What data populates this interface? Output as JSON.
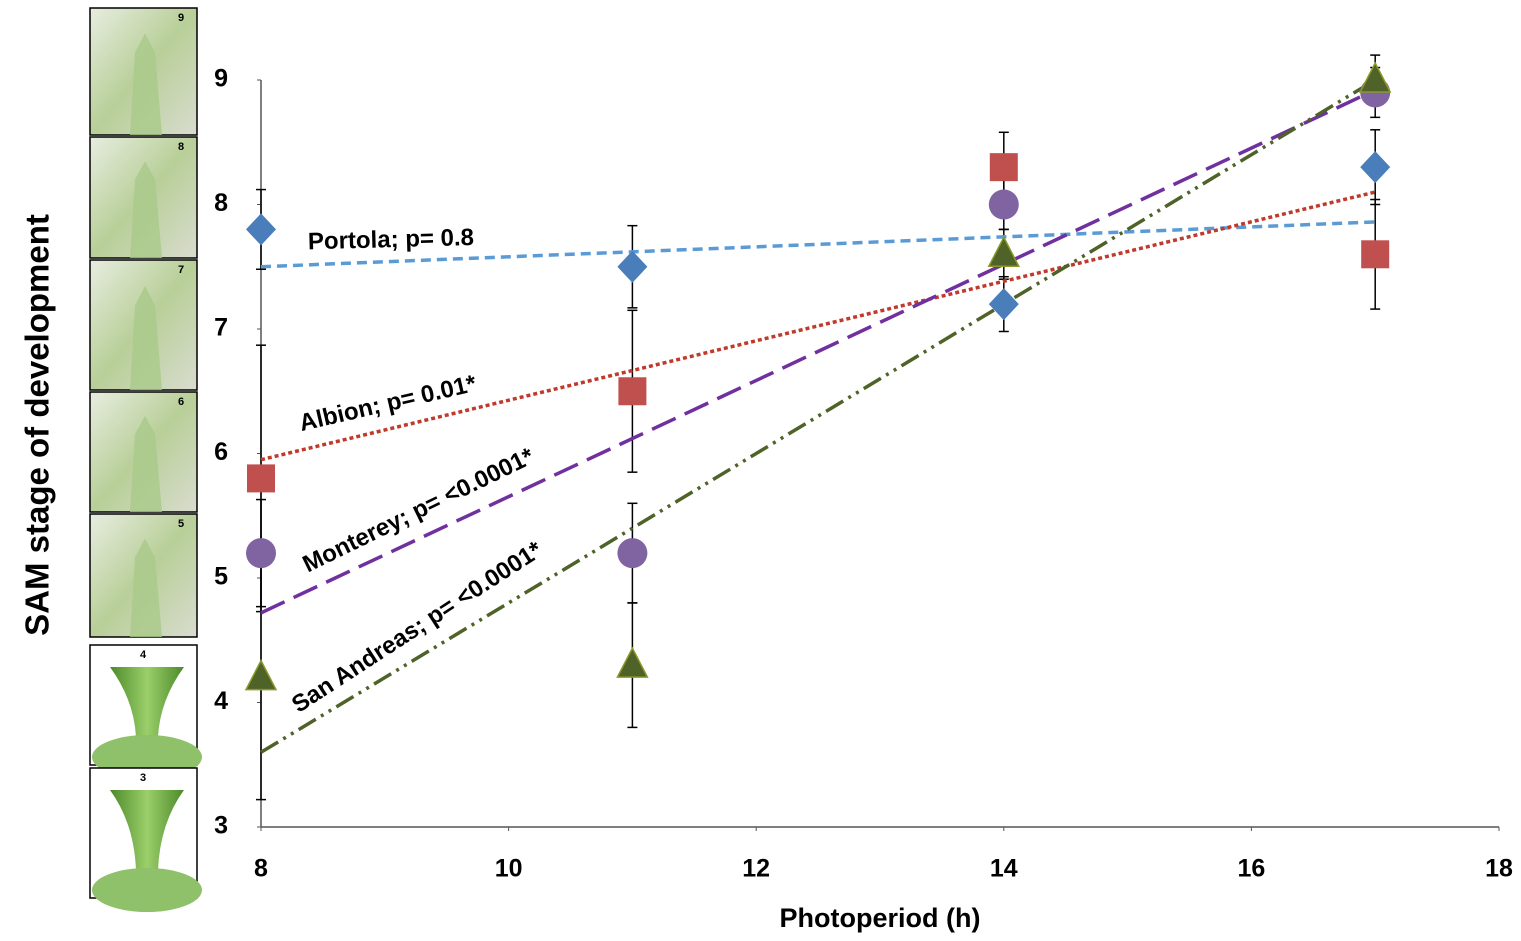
{
  "chart_data": {
    "type": "scatter",
    "x_label": "Photoperiod (h)",
    "y_label": "SAM stage of development",
    "xlim": [
      8,
      18
    ],
    "xticks": [
      8,
      10,
      12,
      14,
      16,
      18
    ],
    "ylim": [
      3,
      9
    ],
    "yticks": [
      3,
      4,
      5,
      6,
      7,
      8,
      9
    ],
    "x": [
      8,
      11,
      14,
      17
    ],
    "series": [
      {
        "name": "Portola; p=  0.8",
        "marker": "diamond",
        "color": "#4a7ebb",
        "line_color": "#5b9bd5",
        "dash": "10,6",
        "values": [
          7.8,
          7.5,
          7.2,
          8.3
        ],
        "errors": [
          0.32,
          0.33,
          0.22,
          0.3
        ],
        "trend_x": [
          8,
          17
        ],
        "trend": [
          7.5,
          7.86
        ]
      },
      {
        "name": "Albion; p=  0.01*",
        "marker": "square",
        "color": "#c0504d",
        "line_color": "#c0392b",
        "dash": "4,3",
        "values": [
          5.8,
          6.5,
          8.3,
          7.6
        ],
        "errors": [
          1.07,
          0.65,
          0.28,
          0.44
        ],
        "trend_x": [
          8,
          17
        ],
        "trend": [
          5.95,
          8.1
        ]
      },
      {
        "name": "Monterey; p=  <0.0001*",
        "marker": "circle",
        "color": "#8064a2",
        "line_color": "#7030a0",
        "dash": "26,10",
        "values": [
          5.2,
          5.2,
          8.0,
          8.9
        ],
        "errors": [
          0.43,
          0.4,
          0.2,
          0.2
        ],
        "trend_x": [
          8,
          17
        ],
        "trend": [
          4.72,
          8.92
        ]
      },
      {
        "name": "San Andreas; p=  <0.0001*",
        "marker": "triangle",
        "color": "#4f6228",
        "line_color": "#4f6228",
        "dash": "20,6,3,6,3,6",
        "values": [
          4.2,
          4.3,
          7.6,
          9.0
        ],
        "errors": [
          0.98,
          0.5,
          0.2,
          0.2
        ],
        "trend_x": [
          8,
          17
        ],
        "trend": [
          3.6,
          9.0
        ]
      }
    ],
    "stage_panels": [
      "9",
      "8",
      "7",
      "6",
      "5",
      "4",
      "3"
    ]
  }
}
